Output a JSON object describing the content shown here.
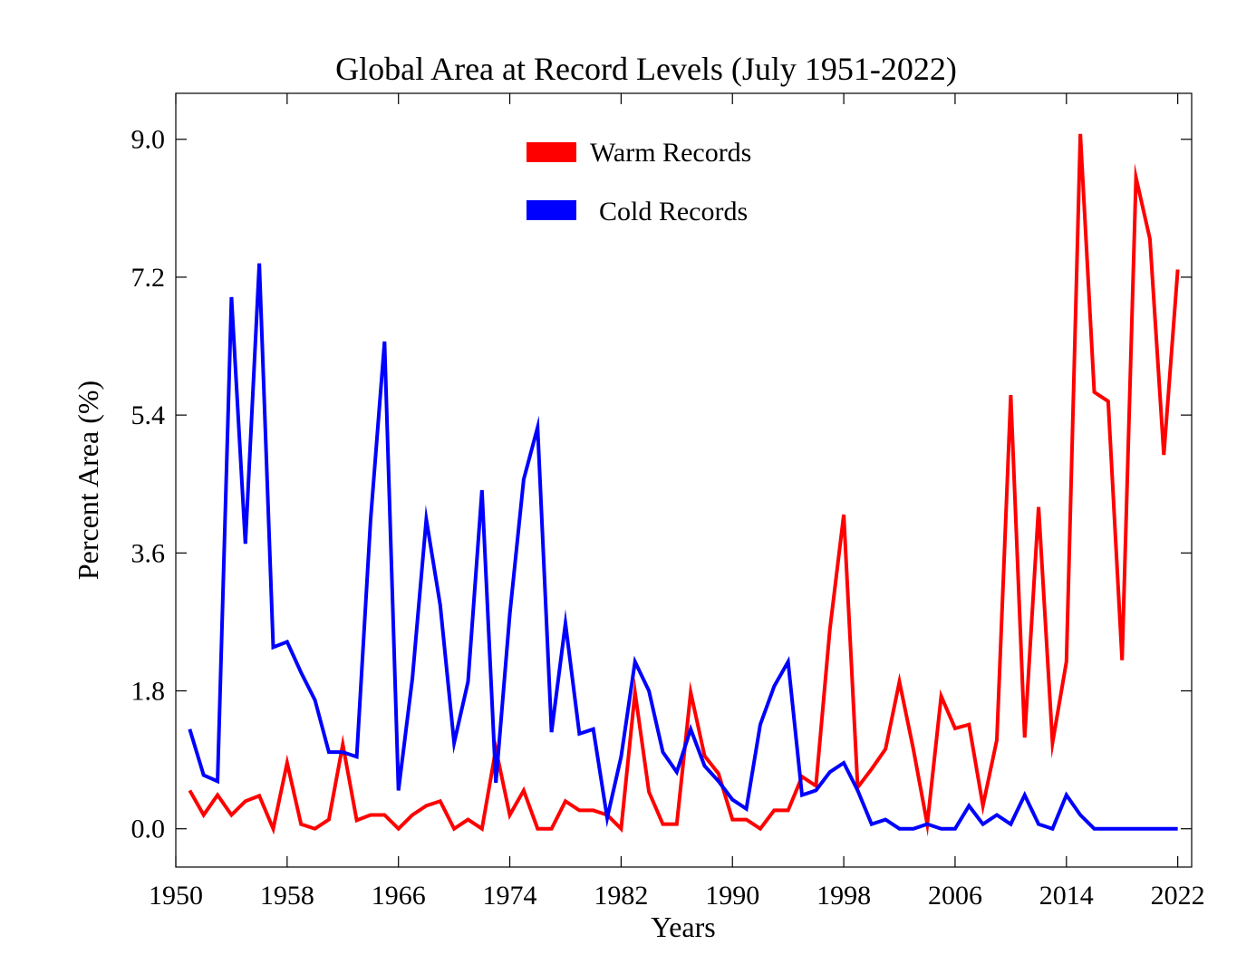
{
  "chart_data": {
    "type": "line",
    "title": "Global Area at Record Levels (July 1951-2022)",
    "xlabel": "Years",
    "ylabel": "Percent Area (%)",
    "xlim": [
      1950,
      2023
    ],
    "ylim": [
      -0.5,
      9.6
    ],
    "xticks": [
      "1950",
      "1958",
      "1966",
      "1974",
      "1982",
      "1990",
      "1998",
      "2006",
      "2014",
      "2022"
    ],
    "yticks": [
      "0.0",
      "1.8",
      "3.6",
      "5.4",
      "7.2",
      "9.0"
    ],
    "grid": false,
    "legend_position": "top-center",
    "x": [
      1951,
      1952,
      1953,
      1954,
      1955,
      1956,
      1957,
      1958,
      1959,
      1960,
      1961,
      1962,
      1963,
      1964,
      1965,
      1966,
      1967,
      1968,
      1969,
      1970,
      1971,
      1972,
      1973,
      1974,
      1975,
      1976,
      1977,
      1978,
      1979,
      1980,
      1981,
      1982,
      1983,
      1984,
      1985,
      1986,
      1987,
      1988,
      1989,
      1990,
      1991,
      1992,
      1993,
      1994,
      1995,
      1996,
      1997,
      1998,
      1999,
      2000,
      2001,
      2002,
      2003,
      2004,
      2005,
      2006,
      2007,
      2008,
      2009,
      2010,
      2011,
      2012,
      2013,
      2014,
      2015,
      2016,
      2017,
      2018,
      2019,
      2020,
      2021,
      2022
    ],
    "series": [
      {
        "name": "Warm Records",
        "color": "#ff0000",
        "values": [
          0.5,
          0.18,
          0.44,
          0.18,
          0.36,
          0.43,
          0.0,
          0.86,
          0.06,
          0.0,
          0.12,
          1.1,
          0.11,
          0.18,
          0.18,
          0.0,
          0.18,
          0.3,
          0.36,
          0.0,
          0.12,
          0.0,
          1.04,
          0.18,
          0.5,
          0.0,
          0.0,
          0.36,
          0.24,
          0.24,
          0.18,
          0.0,
          1.78,
          0.48,
          0.06,
          0.06,
          1.78,
          0.95,
          0.72,
          0.12,
          0.12,
          0.0,
          0.24,
          0.24,
          0.68,
          0.56,
          2.6,
          4.1,
          0.54,
          0.78,
          1.04,
          1.92,
          1.04,
          0.06,
          1.73,
          1.31,
          1.36,
          0.3,
          1.16,
          5.66,
          1.19,
          4.2,
          1.12,
          2.18,
          9.07,
          5.7,
          5.58,
          2.2,
          8.5,
          7.7,
          4.88,
          7.3
        ]
      },
      {
        "name": "Cold Records",
        "color": "#0000ff",
        "values": [
          1.3,
          0.7,
          0.62,
          6.94,
          3.72,
          7.38,
          2.37,
          2.44,
          2.04,
          1.68,
          1.0,
          1.0,
          0.94,
          4.04,
          6.36,
          0.5,
          1.96,
          4.04,
          2.92,
          1.12,
          1.92,
          4.42,
          0.6,
          2.8,
          4.56,
          5.24,
          1.26,
          2.68,
          1.24,
          1.3,
          0.14,
          0.94,
          2.18,
          1.8,
          1.0,
          0.74,
          1.3,
          0.82,
          0.62,
          0.38,
          0.26,
          1.36,
          1.86,
          2.18,
          0.44,
          0.5,
          0.74,
          0.86,
          0.5,
          0.06,
          0.12,
          0.0,
          0.0,
          0.06,
          0.0,
          0.0,
          0.3,
          0.06,
          0.18,
          0.06,
          0.44,
          0.06,
          0.0,
          0.44,
          0.18,
          0.0,
          0.0,
          0.0,
          0.0,
          0.0,
          0.0,
          0.0
        ]
      }
    ]
  }
}
